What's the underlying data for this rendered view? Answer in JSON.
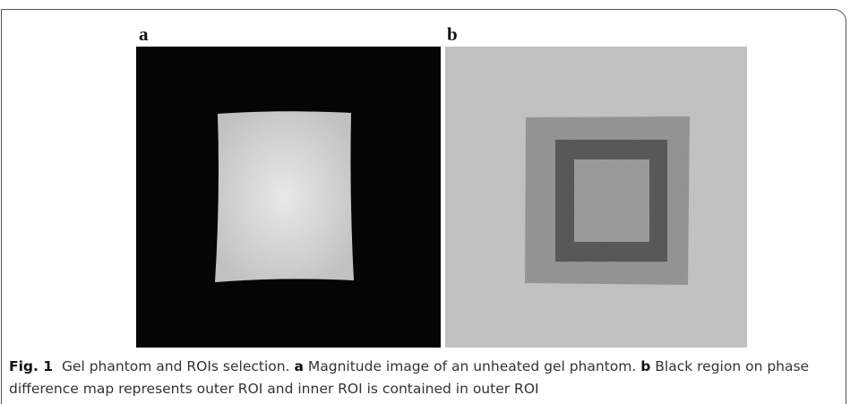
{
  "panels": [
    {
      "label": "a"
    },
    {
      "label": "b"
    }
  ],
  "caption": {
    "figure": "Fig. 1",
    "title": "Gel phantom and ROIs selection.",
    "parts": [
      {
        "label": "a",
        "text": "Magnitude image of an unheated gel phantom."
      },
      {
        "label": "b",
        "text": "Black region on phase difference map represents outer ROI and inner ROI is contained in outer ROI"
      }
    ]
  }
}
